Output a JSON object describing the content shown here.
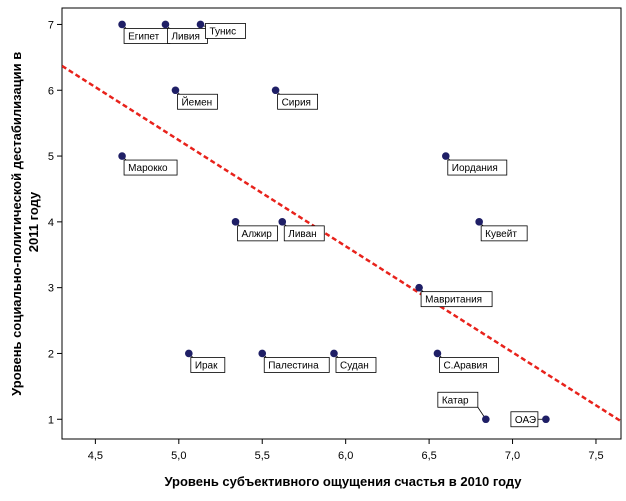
{
  "chart_data": {
    "type": "scatter",
    "title": "",
    "xlabel": "Уровень субъективного ощущения счастья в 2010 году",
    "ylabel_lines": [
      "Уровень социально-политической дестабилизации в",
      "2011 году"
    ],
    "xlim": [
      4.3,
      7.65
    ],
    "ylim": [
      0.7,
      7.25
    ],
    "xticks": [
      "4,5",
      "5,0",
      "5,5",
      "6,0",
      "6,5",
      "7,0",
      "7,5"
    ],
    "xtick_values": [
      4.5,
      5.0,
      5.5,
      6.0,
      6.5,
      7.0,
      7.5
    ],
    "yticks": [
      "1",
      "2",
      "3",
      "4",
      "5",
      "6",
      "7"
    ],
    "ytick_values": [
      1,
      2,
      3,
      4,
      5,
      6,
      7
    ],
    "grid": false,
    "colors": {
      "point": "#1f1f66",
      "trend": "#e8221b",
      "label_border": "#000000"
    },
    "points": [
      {
        "name": "Египет",
        "x": 4.66,
        "y": 7,
        "label_side": "below-right"
      },
      {
        "name": "Ливия",
        "x": 4.92,
        "y": 7,
        "label_side": "below-right"
      },
      {
        "name": "Тунис",
        "x": 5.13,
        "y": 7,
        "label_side": "right"
      },
      {
        "name": "Йемен",
        "x": 4.98,
        "y": 6,
        "label_side": "below-right"
      },
      {
        "name": "Сирия",
        "x": 5.58,
        "y": 6,
        "label_side": "below-right"
      },
      {
        "name": "Марокко",
        "x": 4.66,
        "y": 5,
        "label_side": "below-right"
      },
      {
        "name": "Иордания",
        "x": 6.6,
        "y": 5,
        "label_side": "below-right"
      },
      {
        "name": "Алжир",
        "x": 5.34,
        "y": 4,
        "label_side": "below-right"
      },
      {
        "name": "Ливан",
        "x": 5.62,
        "y": 4,
        "label_side": "below-right"
      },
      {
        "name": "Кувейт",
        "x": 6.8,
        "y": 4,
        "label_side": "below-right"
      },
      {
        "name": "Мавритания",
        "x": 6.44,
        "y": 3,
        "label_side": "below-right"
      },
      {
        "name": "Ирак",
        "x": 5.06,
        "y": 2,
        "label_side": "below-right"
      },
      {
        "name": "Палестина",
        "x": 5.5,
        "y": 2,
        "label_side": "below-right"
      },
      {
        "name": "Судан",
        "x": 5.93,
        "y": 2,
        "label_side": "below-right"
      },
      {
        "name": "С.Аравия",
        "x": 6.55,
        "y": 2,
        "label_side": "below-right"
      },
      {
        "name": "Катар",
        "x": 6.84,
        "y": 1,
        "label_side": "above-left"
      },
      {
        "name": "ОАЭ",
        "x": 7.2,
        "y": 1,
        "label_side": "left"
      }
    ],
    "trendline": {
      "style": "dashed",
      "start": {
        "x": 4.3,
        "y": 6.37
      },
      "end": {
        "x": 7.65,
        "y": 0.97
      }
    }
  }
}
